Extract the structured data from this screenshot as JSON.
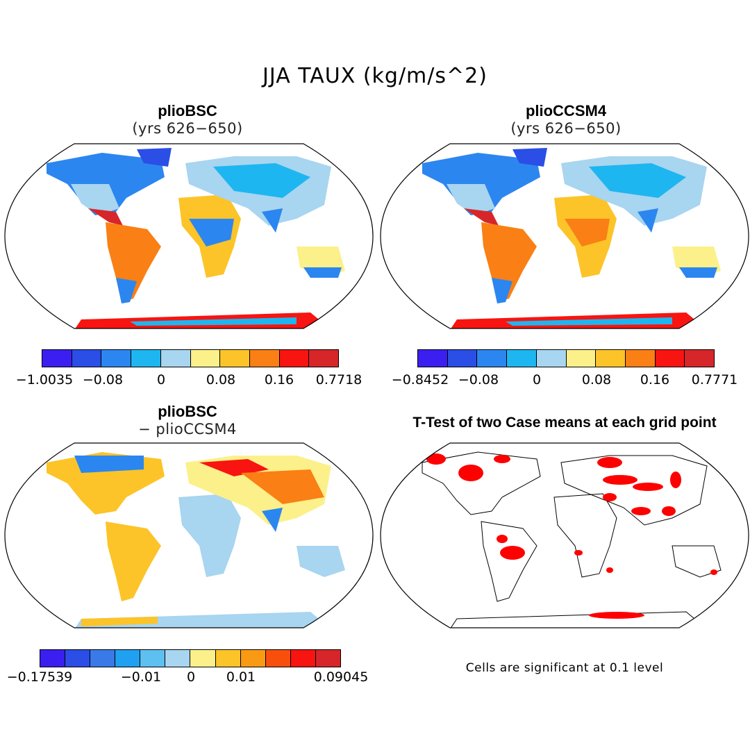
{
  "figure": {
    "title": "JJA TAUX (kg/m/s^2)",
    "note": "Cells are significant at 0.1 level"
  },
  "panels": {
    "p1": {
      "title": "plioBSC",
      "subtitle": "(yrs 626−650)"
    },
    "p2": {
      "title": "plioCCSM4",
      "subtitle": "(yrs 626−650)"
    },
    "p3": {
      "title": "plioBSC",
      "subtitle": "− plioCCSM4"
    },
    "p4": {
      "title": "T-Test of two Case means at each grid point"
    }
  },
  "colorbars": {
    "cb1": {
      "colors": [
        "#3b1ff0",
        "#2a4ee6",
        "#2c86f0",
        "#1eb6f0",
        "#a8d5f0",
        "#fcf08a",
        "#fcc428",
        "#fa7f14",
        "#f81410",
        "#d6262a"
      ],
      "ticks": [
        "−1.0035",
        "−0.08",
        "0",
        "0.08",
        "0.16",
        "0.7718"
      ]
    },
    "cb2": {
      "colors": [
        "#3b1ff0",
        "#2a4ee6",
        "#2c86f0",
        "#1eb6f0",
        "#a8d5f0",
        "#fcf08a",
        "#fcc428",
        "#fa7f14",
        "#f81410",
        "#d6262a"
      ],
      "ticks": [
        "−0.8452",
        "−0.08",
        "0",
        "0.08",
        "0.16",
        "0.7771"
      ]
    },
    "cb3": {
      "colors": [
        "#3b1ff0",
        "#2a4ee6",
        "#3a7ae8",
        "#1fa0f0",
        "#5ec0f0",
        "#a8d5f0",
        "#fcf08a",
        "#fcc428",
        "#fa9a14",
        "#f8500c",
        "#f81410",
        "#d6262a"
      ],
      "ticks": [
        "−0.17539",
        "−0.01",
        "0",
        "0.01",
        "0.09045"
      ]
    }
  }
}
